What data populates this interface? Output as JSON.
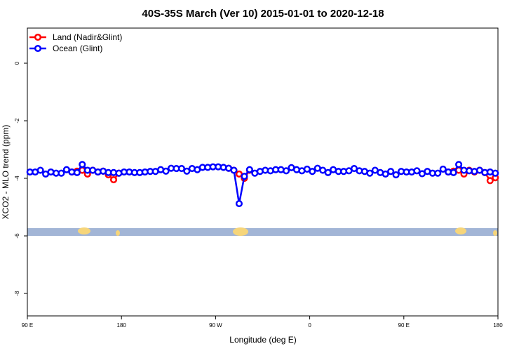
{
  "chart_data": {
    "type": "line",
    "title": "40S-35S March (Ver 10)   2015-01-01 to 2020-12-18",
    "x_label": "Longitude (deg E)",
    "y_label": "XCO2 - MLO trend (ppm)",
    "xlim": [
      90,
      540
    ],
    "xticks": [
      {
        "value": 90,
        "label": "90 E"
      },
      {
        "value": 180,
        "label": "180"
      },
      {
        "value": 270,
        "label": "90 W"
      },
      {
        "value": 360,
        "label": "0"
      },
      {
        "value": 450,
        "label": "90 E"
      },
      {
        "value": 540,
        "label": "180"
      }
    ],
    "ylim": [
      -8.78,
      1.22
    ],
    "yticks": [
      0,
      -2,
      -4,
      -6,
      -8
    ],
    "legend": "top-left",
    "series": [
      {
        "name": "Land (Nadir&Glint)",
        "color": "#ff0000",
        "x": [
          132.5,
          137.5,
          142.5,
          147.5,
          152.5,
          157.5,
          162.5,
          167.5,
          172.5,
          177.5,
          230,
          282.5,
          287.5,
          292.5,
          297.5,
          302.5,
          400,
          492.5,
          497.5,
          502.5,
          507.5,
          512.5,
          517.5,
          522.5,
          527.5,
          532.5,
          537.5
        ],
        "values": [
          -3.78,
          -3.75,
          -3.72,
          -3.85,
          -3.72,
          -3.78,
          -3.75,
          -3.88,
          -4.05,
          -3.82,
          null,
          -3.65,
          -3.72,
          -3.85,
          -4.0,
          -3.72,
          null,
          -3.78,
          -3.75,
          -3.72,
          -3.85,
          -3.72,
          -3.78,
          -3.72,
          -3.8,
          -4.08,
          -3.98
        ]
      },
      {
        "name": "Ocean (Glint)",
        "color": "#0000ff",
        "x": [
          92.5,
          97.5,
          102.5,
          107.5,
          112.5,
          117.5,
          122.5,
          127.5,
          132.5,
          137.5,
          142.5,
          147.5,
          152.5,
          157.5,
          162.5,
          167.5,
          172.5,
          177.5,
          182.5,
          187.5,
          192.5,
          197.5,
          202.5,
          207.5,
          212.5,
          217.5,
          222.5,
          227.5,
          232.5,
          237.5,
          242.5,
          247.5,
          252.5,
          257.5,
          262.5,
          267.5,
          272.5,
          277.5,
          282.5,
          287.5,
          292.5,
          297.5,
          302.5,
          307.5,
          312.5,
          317.5,
          322.5,
          327.5,
          332.5,
          337.5,
          342.5,
          347.5,
          352.5,
          357.5,
          362.5,
          367.5,
          372.5,
          377.5,
          382.5,
          387.5,
          392.5,
          397.5,
          402.5,
          407.5,
          412.5,
          417.5,
          422.5,
          427.5,
          432.5,
          437.5,
          442.5,
          447.5,
          452.5,
          457.5,
          462.5,
          467.5,
          472.5,
          477.5,
          482.5,
          487.5,
          492.5,
          497.5,
          502.5,
          507.5,
          512.5,
          517.5,
          522.5,
          527.5,
          532.5,
          537.5
        ],
        "values": [
          -3.78,
          -3.78,
          -3.72,
          -3.85,
          -3.78,
          -3.82,
          -3.82,
          -3.7,
          -3.78,
          -3.8,
          -3.52,
          -3.72,
          -3.72,
          -3.78,
          -3.75,
          -3.8,
          -3.8,
          -3.82,
          -3.78,
          -3.78,
          -3.8,
          -3.8,
          -3.78,
          -3.76,
          -3.76,
          -3.7,
          -3.75,
          -3.65,
          -3.66,
          -3.66,
          -3.75,
          -3.66,
          -3.7,
          -3.62,
          -3.62,
          -3.6,
          -3.6,
          -3.62,
          -3.65,
          -3.72,
          -4.88,
          -3.93,
          -3.7,
          -3.82,
          -3.76,
          -3.72,
          -3.74,
          -3.7,
          -3.7,
          -3.74,
          -3.63,
          -3.7,
          -3.74,
          -3.68,
          -3.76,
          -3.65,
          -3.72,
          -3.8,
          -3.7,
          -3.76,
          -3.76,
          -3.74,
          -3.66,
          -3.74,
          -3.76,
          -3.82,
          -3.72,
          -3.8,
          -3.85,
          -3.76,
          -3.88,
          -3.76,
          -3.78,
          -3.78,
          -3.74,
          -3.84,
          -3.76,
          -3.82,
          -3.82,
          -3.68,
          -3.78,
          -3.8,
          -3.52,
          -3.72,
          -3.74,
          -3.76,
          -3.72,
          -3.8,
          -3.78,
          -3.82
        ]
      }
    ]
  }
}
